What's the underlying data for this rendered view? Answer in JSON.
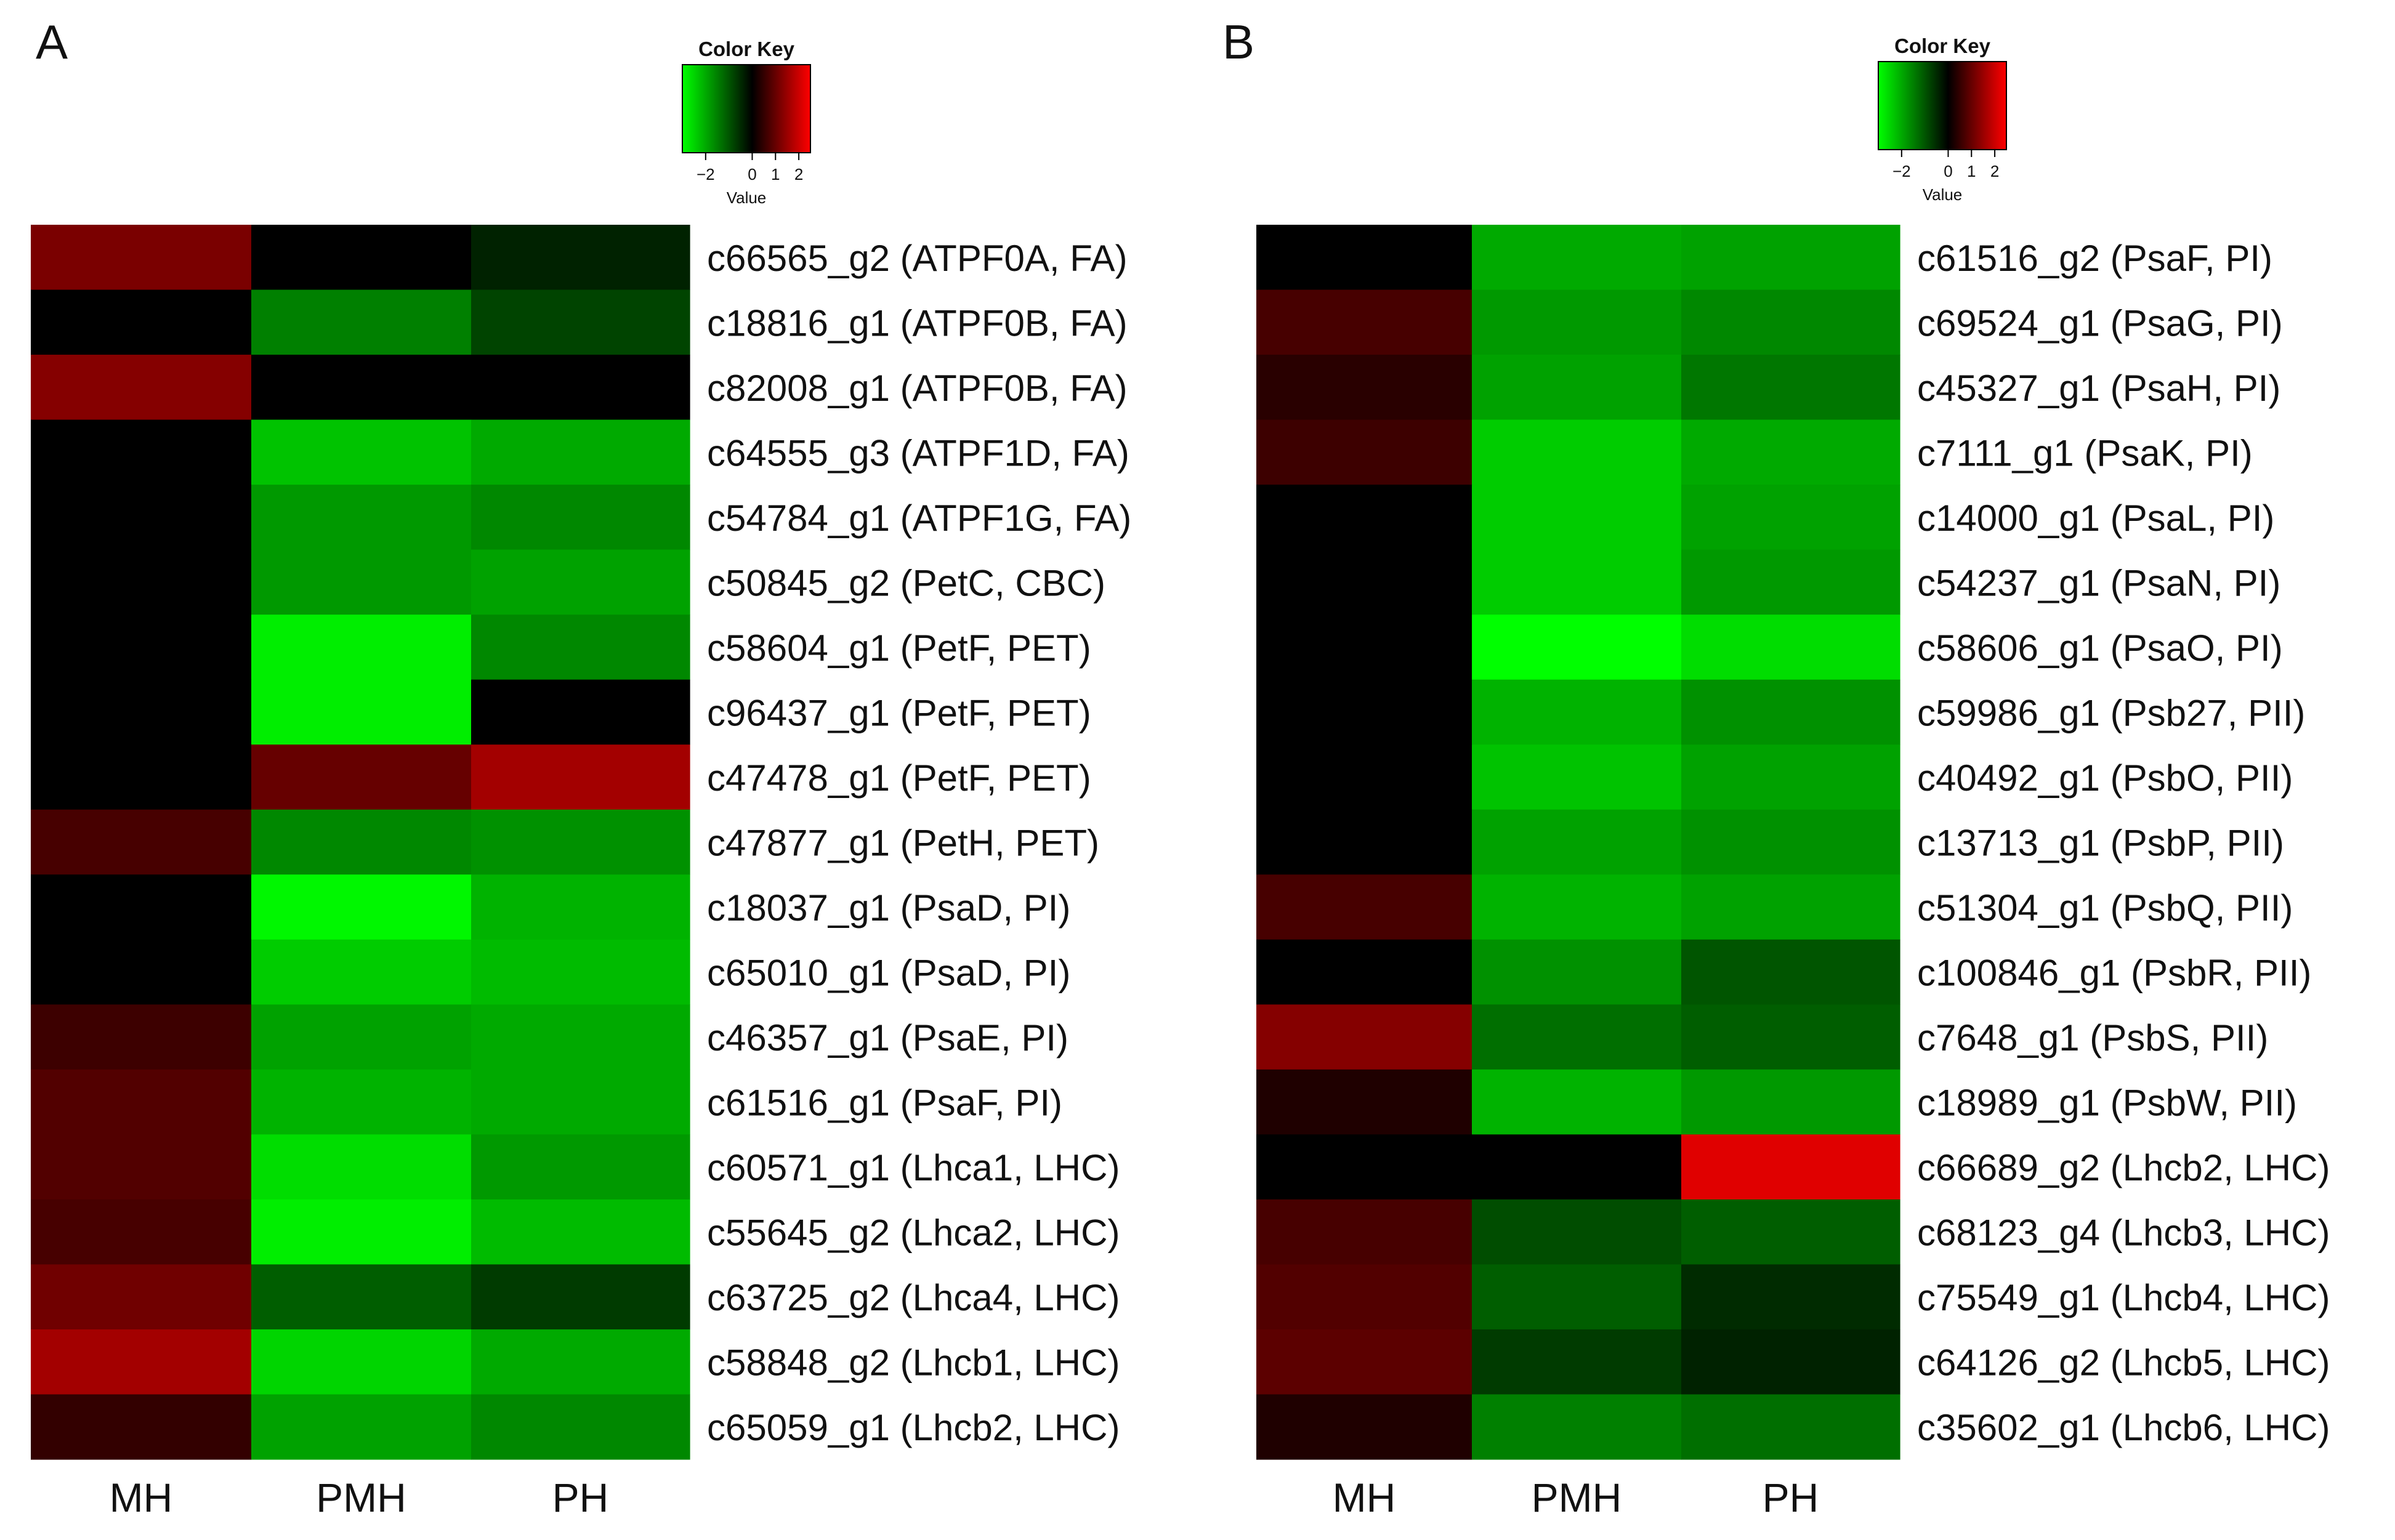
{
  "chart_data": [
    {
      "type": "heatmap",
      "panel_label": "A",
      "columns": [
        "MH",
        "PMH",
        "PH"
      ],
      "color_key": {
        "title": "Color Key",
        "axis_label": "Value",
        "ticks": [
          "−2",
          "0",
          "1",
          "2"
        ],
        "tick_values": [
          -2,
          0,
          1,
          2
        ],
        "range": [
          -3,
          2.5
        ],
        "low_color": "#00ff00",
        "mid_color": "#000000",
        "high_color": "#ff0000"
      },
      "rows": [
        {
          "label": "c66565_g2 (ATPF0A, FA)",
          "values": [
            1.2,
            0,
            -0.4
          ]
        },
        {
          "label": "c18816_g1 (ATPF0B, FA)",
          "values": [
            0,
            -1.5,
            -0.8
          ]
        },
        {
          "label": "c82008_g1 (ATPF0B, FA)",
          "values": [
            1.3,
            0,
            0
          ]
        },
        {
          "label": "c64555_g3 (ATPF1D, FA)",
          "values": [
            0,
            -2.3,
            -2.0
          ]
        },
        {
          "label": "c54784_g1 (ATPF1G, FA)",
          "values": [
            0,
            -1.8,
            -1.6
          ]
        },
        {
          "label": "c50845_g2 (PetC, CBC)",
          "values": [
            0,
            -1.8,
            -1.9
          ]
        },
        {
          "label": "c58604_g1 (PetF, PET)",
          "values": [
            0,
            -2.8,
            -1.6
          ]
        },
        {
          "label": "c96437_g1 (PetF, PET)",
          "values": [
            0,
            -2.8,
            0
          ]
        },
        {
          "label": "c47478_g1 (PetF, PET)",
          "values": [
            0,
            1.0,
            1.6
          ]
        },
        {
          "label": "c47877_g1 (PetH, PET)",
          "values": [
            0.7,
            -1.6,
            -1.7
          ]
        },
        {
          "label": "c18037_g1 (PsaD, PI)",
          "values": [
            0,
            -2.9,
            -2.1
          ]
        },
        {
          "label": "c65010_g1 (PsaD, PI)",
          "values": [
            0,
            -2.4,
            -2.2
          ]
        },
        {
          "label": "c46357_g1 (PsaE, PI)",
          "values": [
            0.6,
            -1.9,
            -2.0
          ]
        },
        {
          "label": "c61516_g1 (PsaF, PI)",
          "values": [
            0.8,
            -2.1,
            -2.0
          ]
        },
        {
          "label": "c60571_g1 (Lhca1, LHC)",
          "values": [
            0.8,
            -2.6,
            -1.8
          ]
        },
        {
          "label": "c55645_g2 (Lhca2, LHC)",
          "values": [
            0.7,
            -2.8,
            -2.2
          ]
        },
        {
          "label": "c63725_g2 (Lhca4, LHC)",
          "values": [
            1.1,
            -1.1,
            -0.7
          ]
        },
        {
          "label": "c58848_g2 (Lhcb1, LHC)",
          "values": [
            1.6,
            -2.5,
            -2.0
          ]
        },
        {
          "label": "c65059_g1 (Lhcb2, LHC)",
          "values": [
            0.5,
            -1.9,
            -1.6
          ]
        }
      ]
    },
    {
      "type": "heatmap",
      "panel_label": "B",
      "columns": [
        "MH",
        "PMH",
        "PH"
      ],
      "color_key": {
        "title": "Color Key",
        "axis_label": "Value",
        "ticks": [
          "−2",
          "0",
          "1",
          "2"
        ],
        "tick_values": [
          -2,
          0,
          1,
          2
        ],
        "range": [
          -3,
          2.5
        ],
        "low_color": "#00ff00",
        "mid_color": "#000000",
        "high_color": "#ff0000"
      },
      "rows": [
        {
          "label": "c61516_g2 (PsaF, PI)",
          "values": [
            0,
            -2.0,
            -1.9
          ]
        },
        {
          "label": "c69524_g1 (PsaG, PI)",
          "values": [
            0.7,
            -1.8,
            -1.6
          ]
        },
        {
          "label": "c45327_g1 (PsaH, PI)",
          "values": [
            0.4,
            -1.9,
            -1.4
          ]
        },
        {
          "label": "c7111_g1 (PsaK, PI)",
          "values": [
            0.6,
            -2.4,
            -2.0
          ]
        },
        {
          "label": "c14000_g1 (PsaL, PI)",
          "values": [
            0,
            -2.4,
            -1.9
          ]
        },
        {
          "label": "c54237_g1 (PsaN, PI)",
          "values": [
            0,
            -2.4,
            -1.8
          ]
        },
        {
          "label": "c58606_g1 (PsaO, PI)",
          "values": [
            0,
            -3.0,
            -2.6
          ]
        },
        {
          "label": "c59986_g1 (Psb27, PII)",
          "values": [
            0,
            -2.1,
            -1.7
          ]
        },
        {
          "label": "c40492_g1 (PsbO, PII)",
          "values": [
            0,
            -2.3,
            -1.9
          ]
        },
        {
          "label": "c13713_g1 (PsbP, PII)",
          "values": [
            0,
            -1.9,
            -1.7
          ]
        },
        {
          "label": "c51304_g1 (PsbQ, PII)",
          "values": [
            0.7,
            -2.1,
            -1.9
          ]
        },
        {
          "label": "c100846_g1 (PsbR, PII)",
          "values": [
            0,
            -1.7,
            -1.0
          ]
        },
        {
          "label": "c7648_g1 (PsbS, PII)",
          "values": [
            1.3,
            -1.3,
            -1.1
          ]
        },
        {
          "label": "c18989_g1 (PsbW, PII)",
          "values": [
            0.3,
            -2.1,
            -1.8
          ]
        },
        {
          "label": "c66689_g2 (Lhcb2, LHC)",
          "values": [
            0,
            0,
            2.2
          ]
        },
        {
          "label": "c68123_g4 (Lhcb3, LHC)",
          "values": [
            0.7,
            -0.9,
            -1.1
          ]
        },
        {
          "label": "c75549_g1 (Lhcb4, LHC)",
          "values": [
            0.8,
            -1.1,
            -0.5
          ]
        },
        {
          "label": "c64126_g2 (Lhcb5, LHC)",
          "values": [
            0.9,
            -0.7,
            -0.4
          ]
        },
        {
          "label": "c35602_g1 (Lhcb6, LHC)",
          "values": [
            0.3,
            -1.5,
            -1.3
          ]
        }
      ]
    }
  ]
}
